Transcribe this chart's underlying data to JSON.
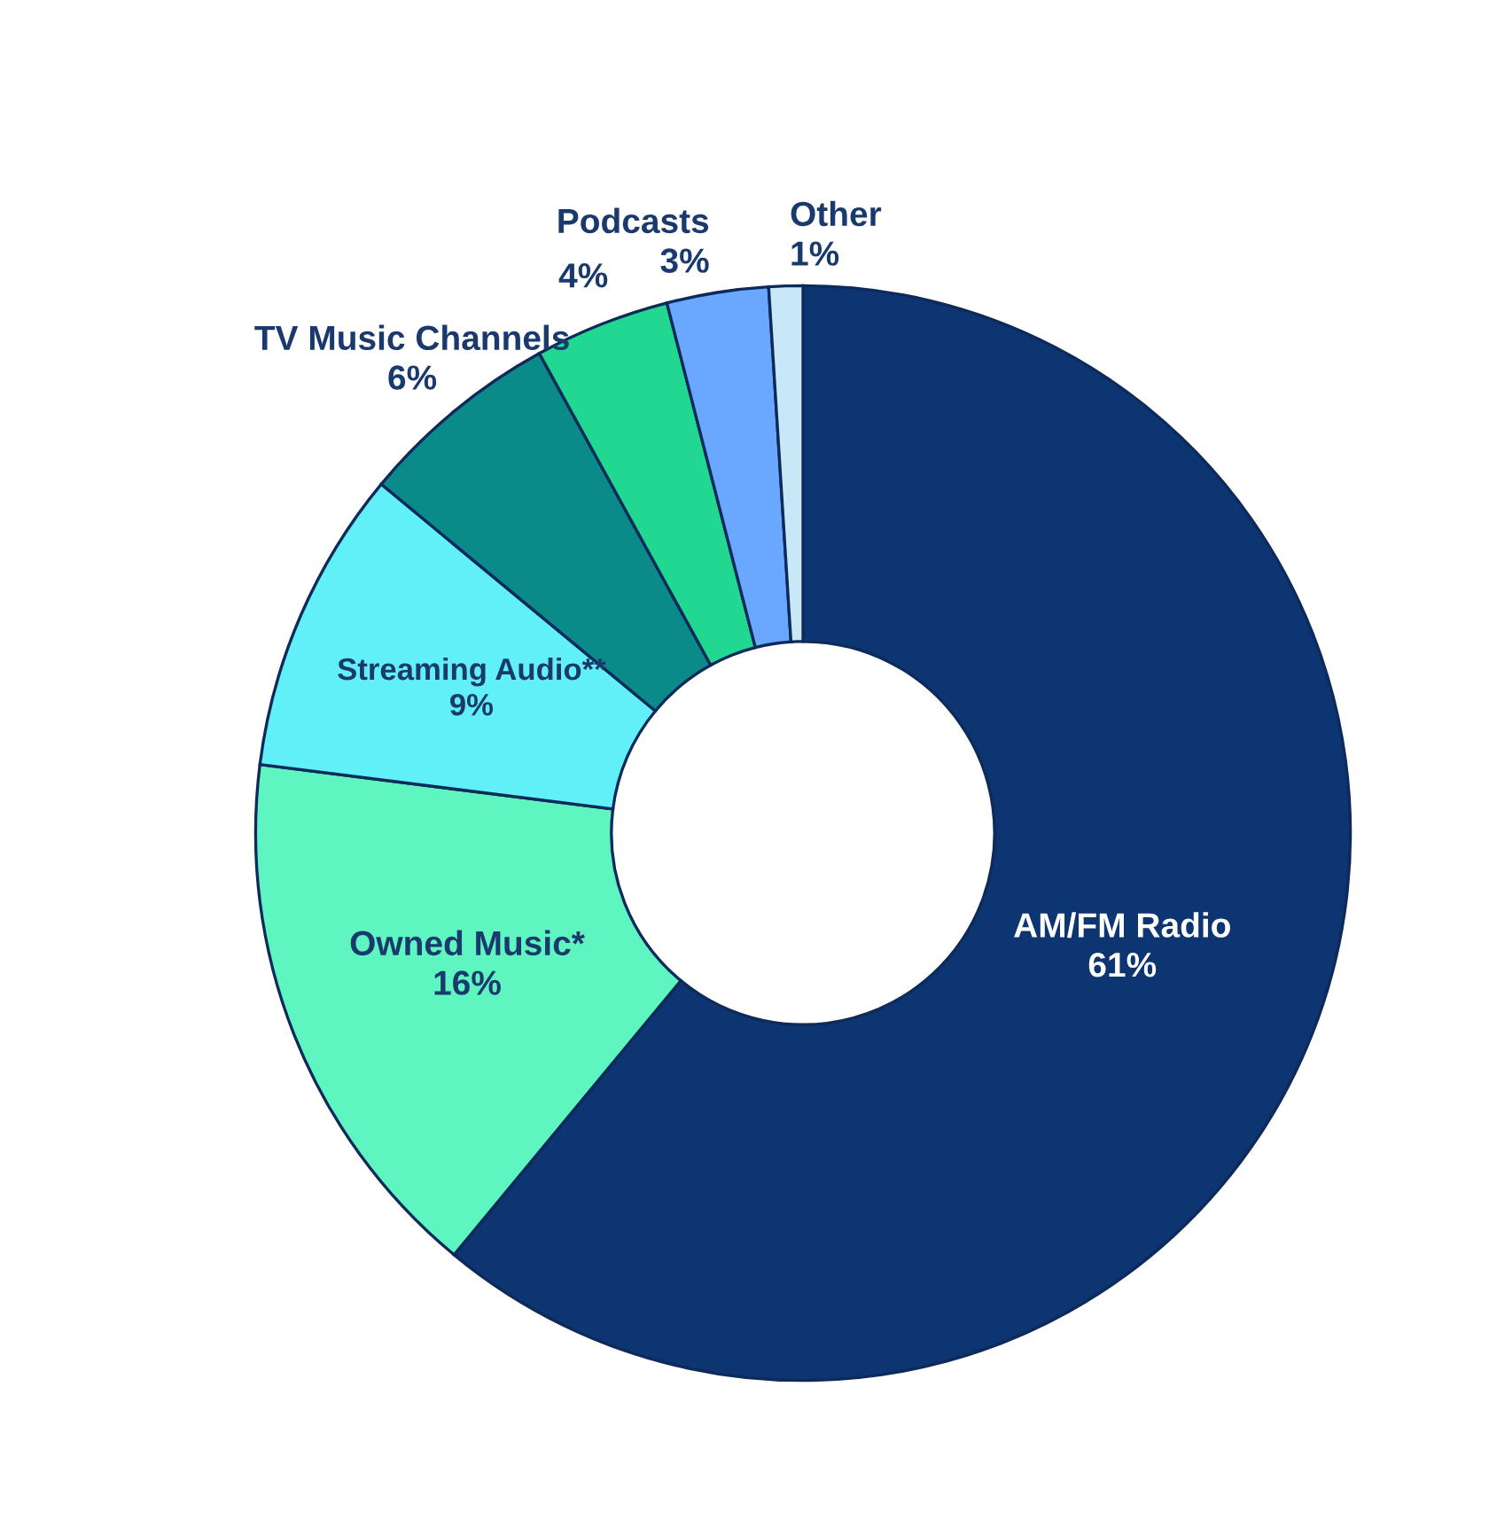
{
  "chart_data": {
    "type": "donut",
    "categories": [
      "AM/FM Radio",
      "Owned Music*",
      "Streaming Audio**",
      "TV Music Channels",
      null,
      "Podcasts",
      "Other"
    ],
    "values": [
      61,
      16,
      9,
      6,
      4,
      3,
      1
    ],
    "value_labels": [
      "61%",
      "16%",
      "9%",
      "6%",
      "4%",
      "3%",
      "1%"
    ],
    "colors": [
      "#0d3572",
      "#5ef5c0",
      "#62f0f8",
      "#0b8a8a",
      "#20d890",
      "#6aa8ff",
      "#c8e8f8"
    ]
  }
}
